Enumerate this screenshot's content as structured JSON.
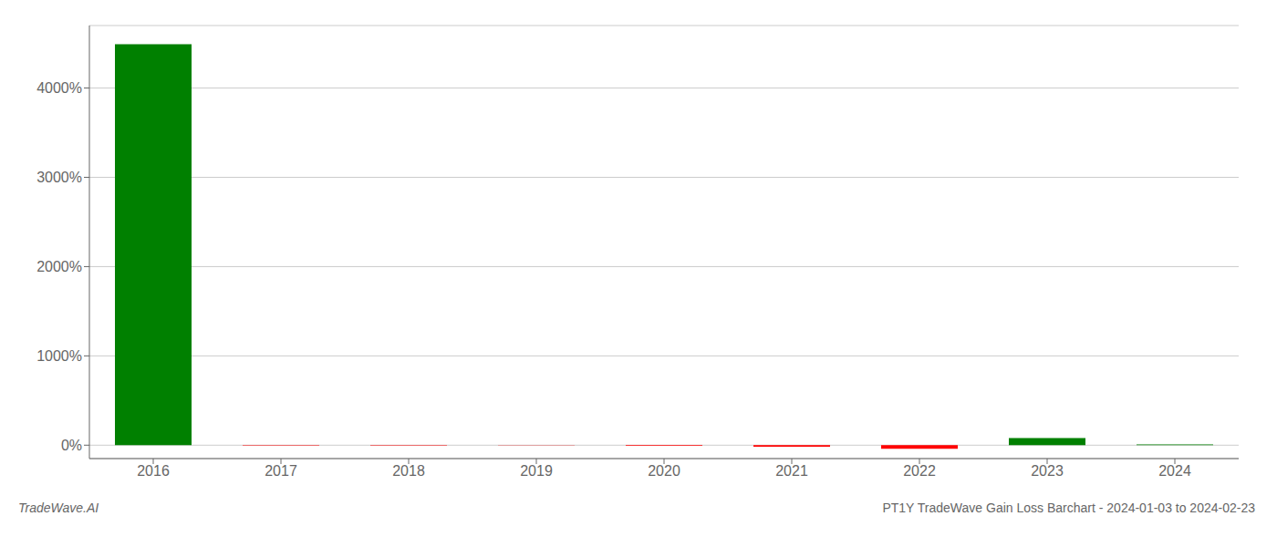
{
  "chart_data": {
    "type": "bar",
    "title": "PT1Y TradeWave Gain Loss Barchart - 2024-01-03 to 2024-02-23",
    "annotations": [
      "TradeWave.AI"
    ],
    "categories": [
      "2016",
      "2017",
      "2018",
      "2019",
      "2020",
      "2021",
      "2022",
      "2023",
      "2024"
    ],
    "values": [
      4490,
      -5,
      -4,
      -3,
      -8,
      -18,
      -40,
      80,
      8
    ],
    "colors": [
      "#008000",
      "#ff0000",
      "#ff0000",
      "#ff0000",
      "#ff0000",
      "#ff0000",
      "#ff0000",
      "#008000",
      "#008000"
    ],
    "ylim": [
      -150,
      4700
    ],
    "yticks": [
      {
        "value": 0,
        "label": "0%"
      },
      {
        "value": 1000,
        "label": "1000%"
      },
      {
        "value": 2000,
        "label": "2000%"
      },
      {
        "value": 3000,
        "label": "3000%"
      },
      {
        "value": 4000,
        "label": "4000%"
      }
    ],
    "grid": true
  }
}
